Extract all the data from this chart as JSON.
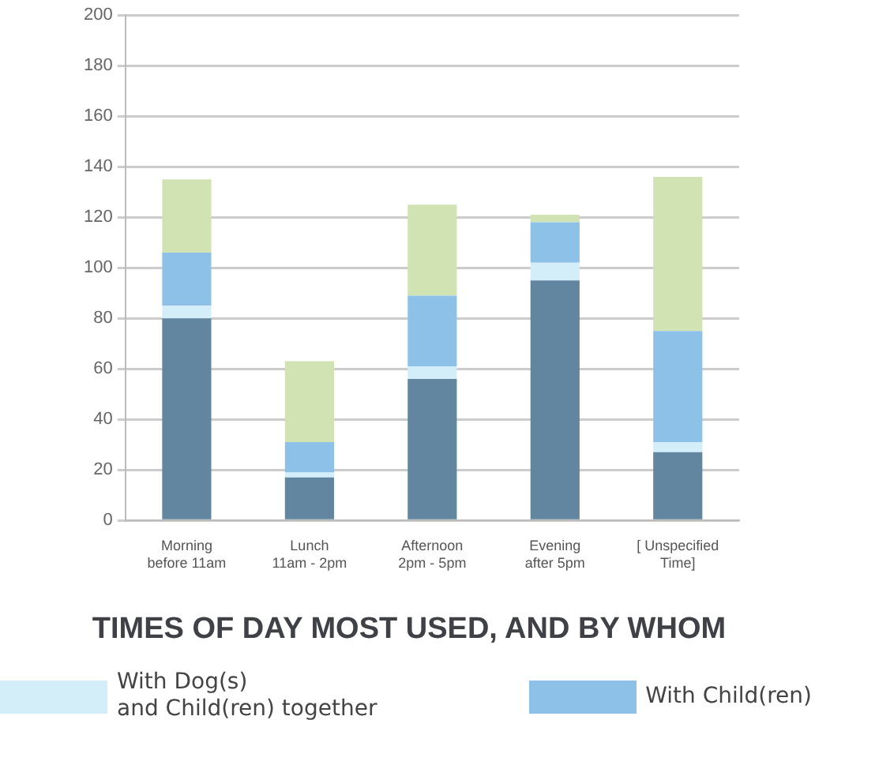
{
  "chart_data": {
    "type": "bar",
    "title": "TIMES OF DAY MOST USED, AND BY WHOM",
    "categories": [
      "Morning\nbefore 11am",
      "Lunch\n11am - 2pm",
      "Afternoon\n2pm - 5pm",
      "Evening\nafter 5pm",
      "[ Unspecified\nTime]"
    ],
    "series": [
      {
        "color": "#62869f",
        "values": [
          80,
          17,
          56,
          95,
          27
        ]
      },
      {
        "name": "With Dog(s)\nand Child(ren) together",
        "color": "#d3eef8",
        "values": [
          5,
          2,
          5,
          7,
          4
        ]
      },
      {
        "name": "With Child(ren)",
        "color": "#8dc1e8",
        "values": [
          21,
          12,
          28,
          16,
          44
        ]
      },
      {
        "color": "#d1e2b3",
        "values": [
          29,
          32,
          36,
          3,
          61
        ]
      }
    ],
    "stacked": true,
    "ylim": [
      0,
      200
    ],
    "yticks": [
      0,
      20,
      40,
      60,
      80,
      100,
      120,
      140,
      160,
      180,
      200
    ],
    "grid": "y",
    "legend": "bottom"
  }
}
